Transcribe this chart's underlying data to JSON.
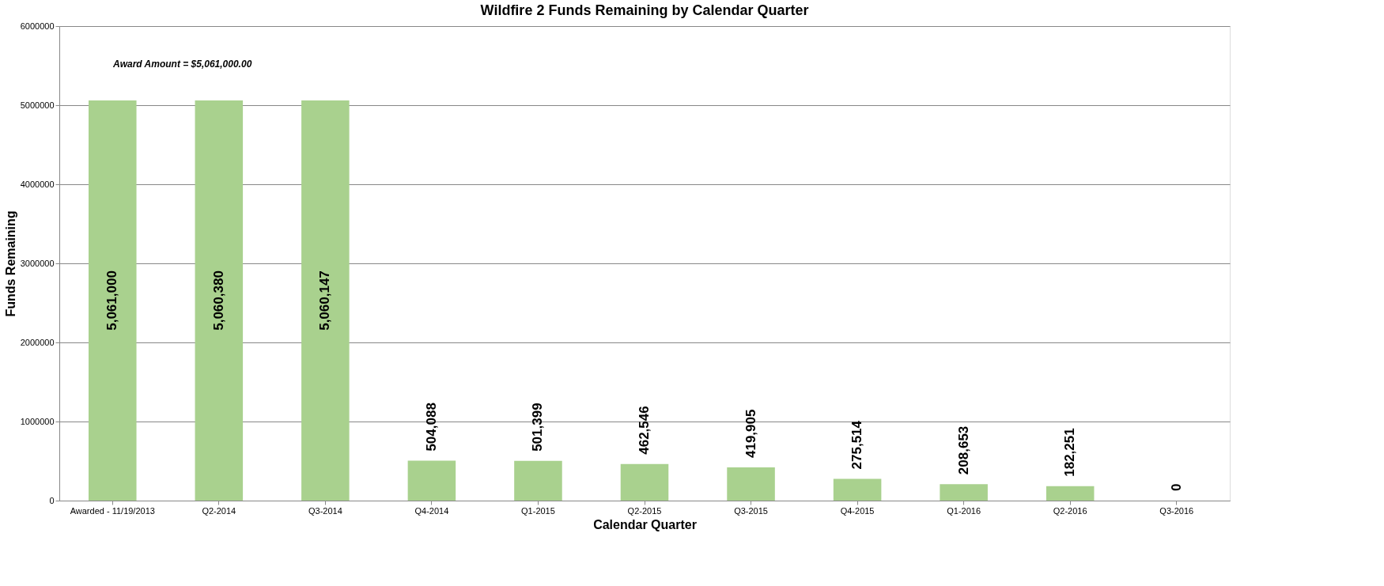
{
  "chart_data": {
    "type": "bar",
    "title": "Wildfire 2 Funds Remaining by Calendar Quarter",
    "xlabel": "Calendar Quarter",
    "ylabel": "Funds Remaining",
    "categories": [
      "Awarded - 11/19/2013",
      "Q2-2014",
      "Q3-2014",
      "Q4-2014",
      "Q1-2015",
      "Q2-2015",
      "Q3-2015",
      "Q4-2015",
      "Q1-2016",
      "Q2-2016",
      "Q3-2016"
    ],
    "values": [
      5061000,
      5060380,
      5060147,
      504088,
      501399,
      462546,
      419905,
      275514,
      208653,
      182251,
      0
    ],
    "color": "#a9d18e",
    "ylim": [
      0,
      6000000
    ],
    "yticks": [
      0,
      1000000,
      2000000,
      3000000,
      4000000,
      5000000,
      6000000
    ],
    "grid": "y",
    "value_labels": [
      "5,061,000",
      "5,060,380",
      "5,060,147",
      "504,088",
      "501,399",
      "462,546",
      "419,905",
      "275,514",
      "208,653",
      "182,251",
      "0"
    ],
    "annotations": [
      "Award Amount = $5,061,000.00"
    ]
  }
}
